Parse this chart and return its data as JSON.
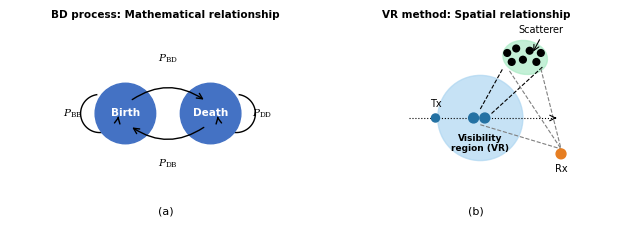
{
  "title_left": "BD process: Mathematical relationship",
  "title_right": "VR method: Spatial relationship",
  "birth_color": "#4472C4",
  "death_color": "#4472C4",
  "vr_color": "#AED6F1",
  "scatterer_color": "#ABEBC6",
  "tx_color": "#2471A3",
  "rx_color": "#E67E22",
  "node_text_color": "#FFFFFF",
  "label_pbb": "$P_{\\mathrm{BB}}$",
  "label_pdd": "$P_{\\mathrm{DD}}$",
  "label_pbd": "$P_{\\mathrm{BD}}$",
  "label_pdb": "$P_{\\mathrm{DB}}$",
  "label_birth": "Birth",
  "label_death": "Death",
  "label_tx": "Tx",
  "label_rx": "Rx",
  "label_vr": "Visibility\nregion (VR)",
  "label_scatterer": "Scatterer",
  "label_a": "(a)",
  "label_b": "(b)"
}
